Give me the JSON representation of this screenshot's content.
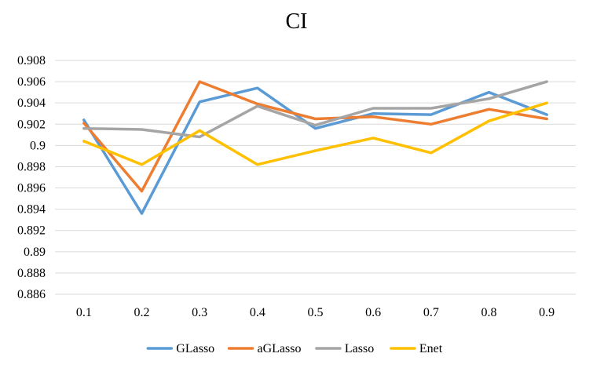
{
  "chart_data": {
    "type": "line",
    "title": "CI",
    "xlabel": "",
    "ylabel": "",
    "categories": [
      "0.1",
      "0.2",
      "0.3",
      "0.4",
      "0.5",
      "0.6",
      "0.7",
      "0.8",
      "0.9"
    ],
    "ylim": [
      0.886,
      0.908
    ],
    "y_ticks": [
      "0.886",
      "0.888",
      "0.89",
      "0.892",
      "0.894",
      "0.896",
      "0.898",
      "0.9",
      "0.902",
      "0.904",
      "0.906",
      "0.908"
    ],
    "grid": true,
    "legend_position": "bottom",
    "series": [
      {
        "name": "GLasso",
        "color": "#5B9BD5",
        "values": [
          0.9024,
          0.8936,
          0.9041,
          0.9054,
          0.9016,
          0.903,
          0.9029,
          0.905,
          0.9029
        ]
      },
      {
        "name": "aGLasso",
        "color": "#ED7D31",
        "values": [
          0.9021,
          0.8957,
          0.906,
          0.9039,
          0.9025,
          0.9027,
          0.902,
          0.9034,
          0.9025
        ]
      },
      {
        "name": "Lasso",
        "color": "#A5A5A5",
        "values": [
          0.9016,
          0.9015,
          0.9008,
          0.9037,
          0.9019,
          0.9035,
          0.9035,
          0.9044,
          0.906
        ]
      },
      {
        "name": "Enet",
        "color": "#FFC000",
        "values": [
          0.9004,
          0.8982,
          0.9014,
          0.8982,
          0.8995,
          0.9007,
          0.8993,
          0.9023,
          0.904
        ]
      }
    ]
  }
}
